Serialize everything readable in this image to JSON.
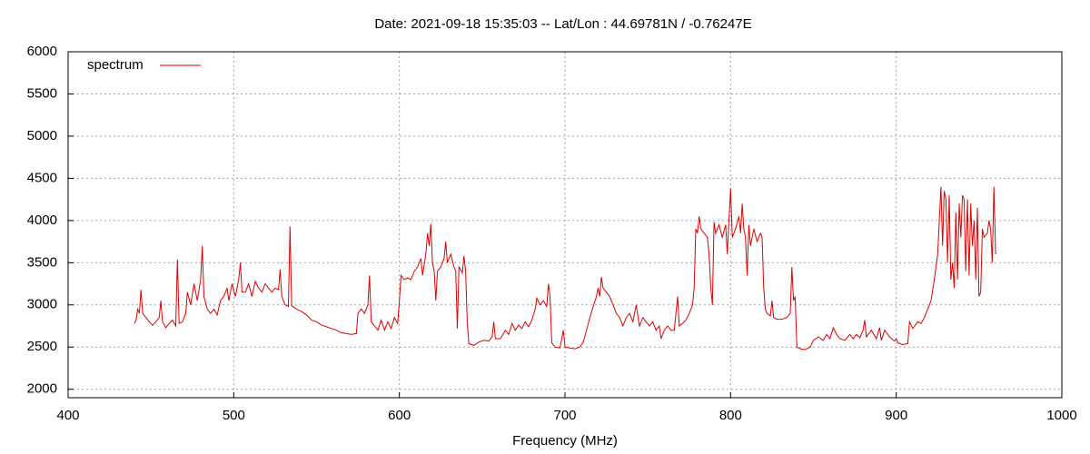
{
  "chart_data": {
    "type": "line",
    "title": "Date: 2021-09-18 15:35:03  --  Lat/Lon : 44.69781N / -0.76247E",
    "x_label": "Frequency (MHz)",
    "legend_position": "top-left",
    "grid": true,
    "xlim": [
      400,
      1000
    ],
    "ylim": [
      1900,
      6000
    ],
    "xticks": [
      400,
      500,
      600,
      700,
      800,
      900,
      1000
    ],
    "yticks": [
      2000,
      2500,
      3000,
      3500,
      4000,
      4500,
      5000,
      5500,
      6000
    ],
    "x": [
      440,
      441,
      442,
      443,
      444,
      445,
      447,
      449,
      451,
      453,
      455,
      456,
      457,
      459,
      461,
      463,
      465,
      466,
      467,
      469,
      471,
      472,
      474,
      476,
      478,
      480,
      481,
      482,
      484,
      486,
      488,
      490,
      492,
      494,
      496,
      497,
      499,
      501,
      503,
      504,
      505,
      507,
      509,
      511,
      513,
      515,
      517,
      519,
      521,
      523,
      525,
      527,
      528,
      529,
      531,
      533,
      534,
      535,
      538,
      541,
      544,
      547,
      550,
      553,
      556,
      559,
      562,
      565,
      568,
      571,
      574,
      575,
      577,
      579,
      581,
      582,
      583,
      585,
      587,
      589,
      591,
      593,
      595,
      597,
      599,
      600,
      601,
      603,
      605,
      607,
      609,
      611,
      613,
      614,
      616,
      617,
      618,
      619,
      620,
      621,
      622,
      623,
      625,
      627,
      628,
      629,
      631,
      633,
      634,
      635,
      636,
      638,
      639,
      640,
      641,
      642,
      645,
      648,
      651,
      654,
      656,
      657,
      658,
      661,
      664,
      666,
      668,
      670,
      672,
      674,
      676,
      678,
      680,
      682,
      683,
      685,
      687,
      689,
      690,
      691,
      692,
      694,
      697,
      699,
      700,
      703,
      706,
      709,
      711,
      713,
      715,
      717,
      719,
      720,
      721,
      722,
      723,
      725,
      727,
      729,
      731,
      733,
      735,
      737,
      739,
      741,
      743,
      745,
      747,
      749,
      751,
      753,
      755,
      757,
      758,
      760,
      762,
      764,
      766,
      768,
      769,
      771,
      773,
      775,
      777,
      778,
      779,
      780,
      781,
      782,
      784,
      786,
      787,
      788,
      789,
      790,
      791,
      793,
      795,
      797,
      798,
      799,
      800,
      801,
      803,
      805,
      806,
      807,
      808,
      809,
      810,
      811,
      812,
      814,
      816,
      818,
      819,
      820,
      821,
      822,
      824,
      825,
      826,
      828,
      831,
      834,
      836,
      837,
      838,
      839,
      840,
      842,
      845,
      848,
      850,
      853,
      856,
      858,
      860,
      862,
      864,
      866,
      869,
      872,
      874,
      876,
      878,
      880,
      881,
      882,
      885,
      888,
      890,
      891,
      893,
      896,
      899,
      900,
      901,
      904,
      907,
      908,
      910,
      913,
      915,
      917,
      919,
      921,
      923,
      925,
      926,
      927,
      928,
      929,
      930,
      931,
      932,
      933,
      934,
      935,
      936,
      937,
      938,
      939,
      940,
      941,
      942,
      943,
      944,
      945,
      946,
      947,
      948,
      949,
      950,
      951,
      952,
      953,
      955,
      956,
      957,
      958,
      959,
      960
    ],
    "series": [
      {
        "name": "spectrum",
        "color": "#e00000",
        "values": [
          2780,
          2820,
          2950,
          2900,
          3180,
          2900,
          2850,
          2800,
          2760,
          2800,
          2850,
          3050,
          2800,
          2730,
          2780,
          2820,
          2750,
          3540,
          2780,
          2800,
          2900,
          3150,
          3000,
          3250,
          3050,
          3300,
          3700,
          3100,
          2950,
          2900,
          2950,
          2880,
          3050,
          3100,
          3200,
          3050,
          3250,
          3100,
          3300,
          3500,
          3150,
          3150,
          3250,
          3100,
          3280,
          3200,
          3150,
          3250,
          3200,
          3150,
          3200,
          3180,
          3420,
          3100,
          3000,
          2980,
          3930,
          2990,
          2950,
          2920,
          2880,
          2820,
          2800,
          2760,
          2740,
          2720,
          2700,
          2670,
          2660,
          2650,
          2660,
          2900,
          2950,
          2900,
          3000,
          3350,
          2800,
          2750,
          2700,
          2820,
          2700,
          2800,
          2720,
          2850,
          2780,
          3050,
          3350,
          3300,
          3320,
          3300,
          3400,
          3450,
          3550,
          3350,
          3600,
          3850,
          3700,
          3960,
          3500,
          3400,
          3050,
          3400,
          3450,
          3550,
          3750,
          3500,
          3600,
          3450,
          3400,
          2720,
          3450,
          3380,
          3580,
          3400,
          2800,
          2540,
          2520,
          2560,
          2580,
          2570,
          2620,
          2800,
          2600,
          2600,
          2700,
          2650,
          2780,
          2700,
          2760,
          2720,
          2800,
          2740,
          2820,
          2950,
          3080,
          3000,
          3050,
          2980,
          3250,
          3100,
          2550,
          2500,
          2490,
          2700,
          2500,
          2490,
          2480,
          2500,
          2560,
          2700,
          2850,
          2980,
          3100,
          3200,
          3100,
          3330,
          3200,
          3150,
          3100,
          3000,
          2900,
          2850,
          2750,
          2850,
          2900,
          2800,
          3000,
          2750,
          2850,
          2800,
          2750,
          2800,
          2700,
          2750,
          2600,
          2700,
          2750,
          2700,
          2700,
          3100,
          2750,
          2780,
          2820,
          2900,
          3000,
          3200,
          3900,
          3850,
          4050,
          3900,
          3850,
          3800,
          3600,
          3200,
          3000,
          3980,
          3850,
          3950,
          3800,
          3950,
          3600,
          4000,
          4380,
          3800,
          3900,
          4050,
          3850,
          4200,
          3900,
          3800,
          3350,
          3950,
          3700,
          3900,
          3750,
          3850,
          3800,
          3200,
          2950,
          2900,
          2870,
          3050,
          2850,
          2830,
          2830,
          2850,
          2900,
          3450,
          3050,
          3100,
          2500,
          2480,
          2470,
          2500,
          2580,
          2620,
          2580,
          2650,
          2600,
          2730,
          2650,
          2600,
          2580,
          2650,
          2600,
          2650,
          2610,
          2700,
          2820,
          2620,
          2700,
          2600,
          2730,
          2580,
          2700,
          2620,
          2570,
          2600,
          2550,
          2530,
          2540,
          2800,
          2720,
          2800,
          2780,
          2850,
          2950,
          3050,
          3300,
          3600,
          4000,
          4400,
          3700,
          4350,
          4250,
          3500,
          4300,
          3300,
          3500,
          3200,
          4100,
          3300,
          4200,
          3800,
          4300,
          4250,
          3400,
          4250,
          3350,
          4200,
          3700,
          4000,
          3300,
          4150,
          3100,
          3150,
          3900,
          3800,
          3850,
          4000,
          3900,
          3500,
          4400,
          3600
        ]
      }
    ]
  }
}
